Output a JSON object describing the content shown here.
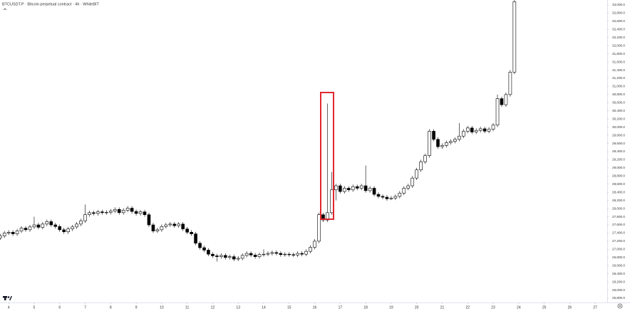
{
  "chart_data": {
    "type": "candlestick",
    "title": "BTCUSDT.P · Bitcoin perpetual contract · 4h · WhiteBIT",
    "up_color": "#ffffff",
    "down_color": "#000000",
    "wick_color": "#000000",
    "xlim": [
      3.66,
      27.47
    ],
    "xticks": [
      4,
      5,
      6,
      7,
      8,
      9,
      10,
      11,
      12,
      13,
      14,
      15,
      16,
      17,
      18,
      19,
      20,
      21,
      22,
      23,
      24,
      25,
      26,
      27
    ],
    "ylim": [
      25695,
      33122
    ],
    "yticks": [
      {
        "value": 25800,
        "label": "25,800.0"
      },
      {
        "value": 26000,
        "label": "26,000.0"
      },
      {
        "value": 26200,
        "label": "26,200.0"
      },
      {
        "value": 26400,
        "label": "26,400.0"
      },
      {
        "value": 26600,
        "label": "26,600.0"
      },
      {
        "value": 26800,
        "label": "26,800.0"
      },
      {
        "value": 27000,
        "label": "27,000.0"
      },
      {
        "value": 27200,
        "label": "27,200.0"
      },
      {
        "value": 27400,
        "label": "27,400.0"
      },
      {
        "value": 27600,
        "label": "27,600.0"
      },
      {
        "value": 27800,
        "label": "27,800.0"
      },
      {
        "value": 28000,
        "label": "28,000.0"
      },
      {
        "value": 28200,
        "label": "28,200.0"
      },
      {
        "value": 28400,
        "label": "28,400.0"
      },
      {
        "value": 28600,
        "label": "28,600.0"
      },
      {
        "value": 28800,
        "label": "28,800.0"
      },
      {
        "value": 29000,
        "label": "29,000.0"
      },
      {
        "value": 29200,
        "label": "29,200.0"
      },
      {
        "value": 29400,
        "label": "29,400.0"
      },
      {
        "value": 29600,
        "label": "29,600.0"
      },
      {
        "value": 29800,
        "label": "29,800.0"
      },
      {
        "value": 30000,
        "label": "30,000.0"
      },
      {
        "value": 30200,
        "label": "30,200.0"
      },
      {
        "value": 30400,
        "label": "30,400.0"
      },
      {
        "value": 30600,
        "label": "30,600.0"
      },
      {
        "value": 30800,
        "label": "30,800.0"
      },
      {
        "value": 31000,
        "label": "31,000.0"
      },
      {
        "value": 31200,
        "label": "31,200.0"
      },
      {
        "value": 31400,
        "label": "31,400.0"
      },
      {
        "value": 31600,
        "label": "31,600.0"
      },
      {
        "value": 31800,
        "label": "31,800.0"
      },
      {
        "value": 32000,
        "label": "32,000.0"
      },
      {
        "value": 32200,
        "label": "32,200.0"
      },
      {
        "value": 32400,
        "label": "32,400.0"
      },
      {
        "value": 32600,
        "label": "32,600.0"
      },
      {
        "value": 32800,
        "label": "32,800.0"
      },
      {
        "value": 33000,
        "label": "33,000.0"
      }
    ],
    "x": [
      3.667,
      3.833,
      4,
      4.167,
      4.333,
      4.5,
      4.667,
      4.833,
      5,
      5.167,
      5.333,
      5.5,
      5.667,
      5.833,
      6,
      6.167,
      6.333,
      6.5,
      6.667,
      6.833,
      7,
      7.167,
      7.333,
      7.5,
      7.667,
      7.833,
      8,
      8.167,
      8.333,
      8.5,
      8.667,
      8.833,
      9,
      9.167,
      9.333,
      9.5,
      9.667,
      9.833,
      10,
      10.167,
      10.333,
      10.5,
      10.667,
      10.833,
      11,
      11.167,
      11.333,
      11.5,
      11.667,
      11.833,
      12,
      12.167,
      12.333,
      12.5,
      12.667,
      12.833,
      13,
      13.167,
      13.333,
      13.5,
      13.667,
      13.833,
      14,
      14.167,
      14.333,
      14.5,
      14.667,
      14.833,
      15,
      15.167,
      15.333,
      15.5,
      15.667,
      15.833,
      16,
      16.167,
      16.333,
      16.5,
      16.667,
      16.833,
      17,
      17.167,
      17.333,
      17.5,
      17.667,
      17.833,
      18,
      18.167,
      18.333,
      18.5,
      18.667,
      18.833,
      19,
      19.167,
      19.333,
      19.5,
      19.667,
      19.833,
      20,
      20.167,
      20.333,
      20.5,
      20.667,
      20.833,
      21,
      21.167,
      21.333,
      21.5,
      21.667,
      21.833,
      22,
      22.167,
      22.333,
      22.5,
      22.667,
      22.833,
      23,
      23.167,
      23.333,
      23.5,
      23.667,
      23.833
    ],
    "ohlc": [
      [
        27280,
        27380,
        27230,
        27330
      ],
      [
        27330,
        27450,
        27280,
        27400
      ],
      [
        27400,
        27470,
        27350,
        27420
      ],
      [
        27420,
        27470,
        27330,
        27380
      ],
      [
        27380,
        27500,
        27330,
        27450
      ],
      [
        27450,
        27570,
        27400,
        27520
      ],
      [
        27520,
        27570,
        27430,
        27480
      ],
      [
        27480,
        27600,
        27430,
        27550
      ],
      [
        27550,
        27800,
        27500,
        27600
      ],
      [
        27600,
        27650,
        27490,
        27540
      ],
      [
        27540,
        27670,
        27490,
        27620
      ],
      [
        27620,
        27730,
        27570,
        27680
      ],
      [
        27680,
        27730,
        27550,
        27600
      ],
      [
        27600,
        27650,
        27510,
        27560
      ],
      [
        27560,
        27610,
        27430,
        27480
      ],
      [
        27480,
        27530,
        27380,
        27430
      ],
      [
        27430,
        27550,
        27380,
        27500
      ],
      [
        27500,
        27600,
        27450,
        27550
      ],
      [
        27550,
        27670,
        27500,
        27620
      ],
      [
        27620,
        27750,
        27570,
        27700
      ],
      [
        27700,
        28100,
        27650,
        27850
      ],
      [
        27850,
        27950,
        27800,
        27900
      ],
      [
        27900,
        27950,
        27830,
        27880
      ],
      [
        27880,
        27970,
        27830,
        27920
      ],
      [
        27920,
        27970,
        27850,
        27900
      ],
      [
        27900,
        27960,
        27850,
        27910
      ],
      [
        27910,
        27990,
        27860,
        27940
      ],
      [
        27940,
        28030,
        27890,
        27980
      ],
      [
        27980,
        28030,
        27850,
        27900
      ],
      [
        27900,
        28010,
        27850,
        27960
      ],
      [
        27960,
        28060,
        27910,
        28010
      ],
      [
        28010,
        28060,
        27880,
        27930
      ],
      [
        27930,
        27980,
        27830,
        27880
      ],
      [
        27880,
        27970,
        27830,
        27920
      ],
      [
        27920,
        27970,
        27800,
        27850
      ],
      [
        27850,
        27900,
        27550,
        27600
      ],
      [
        27600,
        27650,
        27400,
        27450
      ],
      [
        27450,
        27530,
        27400,
        27480
      ],
      [
        27480,
        27610,
        27430,
        27560
      ],
      [
        27560,
        27650,
        27510,
        27600
      ],
      [
        27600,
        27670,
        27550,
        27620
      ],
      [
        27620,
        27670,
        27530,
        27580
      ],
      [
        27580,
        27670,
        27530,
        27620
      ],
      [
        27620,
        27670,
        27450,
        27500
      ],
      [
        27500,
        27550,
        27370,
        27420
      ],
      [
        27420,
        27470,
        27330,
        27380
      ],
      [
        27380,
        27430,
        27100,
        27150
      ],
      [
        27150,
        27200,
        26990,
        27040
      ],
      [
        27040,
        27090,
        26930,
        26980
      ],
      [
        26980,
        27030,
        26830,
        26880
      ],
      [
        26880,
        26930,
        26790,
        26840
      ],
      [
        26840,
        26890,
        26700,
        26820
      ],
      [
        26820,
        26900,
        26770,
        26850
      ],
      [
        26850,
        26900,
        26750,
        26800
      ],
      [
        26800,
        26870,
        26750,
        26820
      ],
      [
        26820,
        26870,
        26710,
        26760
      ],
      [
        26760,
        26830,
        26710,
        26780
      ],
      [
        26780,
        26900,
        26730,
        26850
      ],
      [
        26850,
        26950,
        26800,
        26900
      ],
      [
        26900,
        26950,
        26810,
        26860
      ],
      [
        26860,
        26910,
        26770,
        26820
      ],
      [
        26820,
        26920,
        26770,
        26870
      ],
      [
        26870,
        27000,
        26820,
        26880
      ],
      [
        26880,
        26950,
        26830,
        26900
      ],
      [
        26900,
        26970,
        26850,
        26920
      ],
      [
        26920,
        26970,
        26850,
        26900
      ],
      [
        26900,
        26950,
        26820,
        26870
      ],
      [
        26870,
        26930,
        26820,
        26880
      ],
      [
        26880,
        26930,
        26820,
        26870
      ],
      [
        26870,
        26920,
        26810,
        26860
      ],
      [
        26860,
        26950,
        26810,
        26900
      ],
      [
        26900,
        26950,
        26830,
        26880
      ],
      [
        26880,
        27000,
        26830,
        26950
      ],
      [
        26950,
        27100,
        26900,
        27050
      ],
      [
        27050,
        27250,
        27000,
        27200
      ],
      [
        27200,
        27900,
        27150,
        27850
      ],
      [
        27850,
        27900,
        27670,
        27720
      ],
      [
        27720,
        30580,
        27670,
        27900
      ],
      [
        27900,
        28900,
        27850,
        28460
      ],
      [
        28460,
        28610,
        28200,
        28560
      ],
      [
        28560,
        28610,
        28370,
        28420
      ],
      [
        28420,
        28550,
        28370,
        28500
      ],
      [
        28500,
        28550,
        28410,
        28460
      ],
      [
        28460,
        28590,
        28410,
        28540
      ],
      [
        28540,
        28590,
        28450,
        28500
      ],
      [
        28500,
        28610,
        28450,
        28560
      ],
      [
        28560,
        29060,
        28390,
        28440
      ],
      [
        28440,
        28550,
        28390,
        28500
      ],
      [
        28500,
        28550,
        28300,
        28350
      ],
      [
        28350,
        28400,
        28250,
        28300
      ],
      [
        28300,
        28350,
        28230,
        28280
      ],
      [
        28280,
        28330,
        28190,
        28240
      ],
      [
        28240,
        28310,
        28210,
        28260
      ],
      [
        28260,
        28350,
        28210,
        28300
      ],
      [
        28300,
        28430,
        28250,
        28380
      ],
      [
        28380,
        28550,
        28330,
        28500
      ],
      [
        28500,
        28610,
        28450,
        28560
      ],
      [
        28560,
        28800,
        28510,
        28750
      ],
      [
        28750,
        29000,
        28700,
        28950
      ],
      [
        28950,
        29200,
        28900,
        29150
      ],
      [
        29150,
        29350,
        29100,
        29300
      ],
      [
        29300,
        29950,
        29250,
        29900
      ],
      [
        29900,
        29950,
        29650,
        29700
      ],
      [
        29700,
        29750,
        29470,
        29520
      ],
      [
        29520,
        29600,
        29470,
        29550
      ],
      [
        29550,
        29670,
        29500,
        29620
      ],
      [
        29620,
        29700,
        29570,
        29650
      ],
      [
        29650,
        29750,
        29600,
        29700
      ],
      [
        29700,
        30100,
        29650,
        29780
      ],
      [
        29780,
        29950,
        29730,
        29900
      ],
      [
        29900,
        30030,
        29850,
        29980
      ],
      [
        29980,
        30030,
        29830,
        29880
      ],
      [
        29880,
        29970,
        29830,
        29920
      ],
      [
        29920,
        30010,
        29870,
        29960
      ],
      [
        29960,
        30010,
        29850,
        29900
      ],
      [
        29900,
        30000,
        29850,
        29950
      ],
      [
        29950,
        30100,
        29900,
        30050
      ],
      [
        30050,
        30800,
        30000,
        30700
      ],
      [
        30700,
        30750,
        30500,
        30550
      ],
      [
        30550,
        30850,
        30500,
        30800
      ],
      [
        30800,
        31400,
        30750,
        31350
      ],
      [
        31350,
        33150,
        31300,
        33080
      ]
    ]
  }
}
